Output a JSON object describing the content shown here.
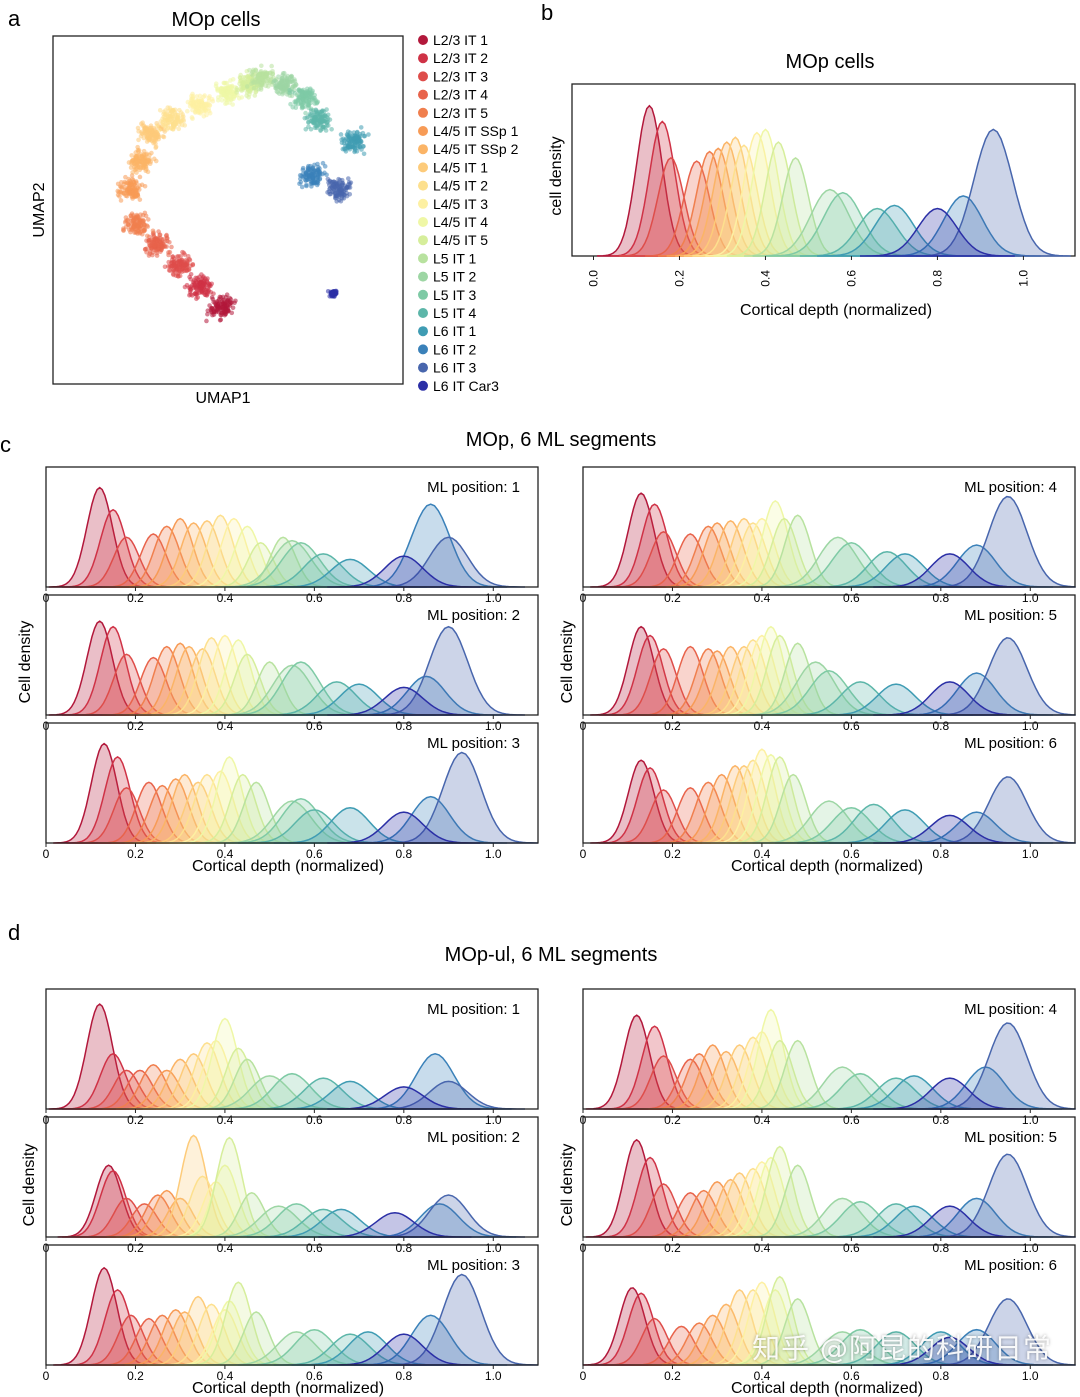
{
  "panel_letters": {
    "a": "a",
    "b": "b",
    "c": "c",
    "d": "d"
  },
  "colors": [
    "#b2183b",
    "#cf3246",
    "#de4d4a",
    "#e8634b",
    "#f07f4e",
    "#f79b56",
    "#fbb466",
    "#fdcb7a",
    "#fde08e",
    "#fdf0a2",
    "#eff7a6",
    "#d6ee9b",
    "#b8e29f",
    "#9dd6a4",
    "#7ecaa5",
    "#5cb6a9",
    "#3f9cb3",
    "#3a81b9",
    "#4866ad",
    "#2b2fa6"
  ],
  "watermark": "知乎 @阿昆的科研日常",
  "chart_data": [
    {
      "type": "scatter",
      "id": "a",
      "title": "MOp cells",
      "xlabel": "UMAP1",
      "ylabel": "UMAP2",
      "legend_position": "right",
      "series": [
        {
          "name": "L2/3 IT 1",
          "values": [
            [
              0.48,
              0.22
            ]
          ]
        },
        {
          "name": "L2/3 IT 2",
          "values": [
            [
              0.42,
              0.28
            ]
          ]
        },
        {
          "name": "L2/3 IT 3",
          "values": [
            [
              0.36,
              0.34
            ]
          ]
        },
        {
          "name": "L2/3 IT 4",
          "values": [
            [
              0.3,
              0.4
            ]
          ]
        },
        {
          "name": "L2/3 IT 5",
          "values": [
            [
              0.24,
              0.46
            ]
          ]
        },
        {
          "name": "L4/5 IT SSp 1",
          "values": [
            [
              0.22,
              0.56
            ]
          ]
        },
        {
          "name": "L4/5 IT SSp 2",
          "values": [
            [
              0.25,
              0.64
            ]
          ]
        },
        {
          "name": "L4/5 IT 1",
          "values": [
            [
              0.28,
              0.72
            ]
          ]
        },
        {
          "name": "L4/5 IT 2",
          "values": [
            [
              0.34,
              0.76
            ]
          ]
        },
        {
          "name": "L4/5 IT 3",
          "values": [
            [
              0.42,
              0.8
            ]
          ]
        },
        {
          "name": "L4/5 IT 4",
          "values": [
            [
              0.5,
              0.84
            ]
          ]
        },
        {
          "name": "L4/5 IT 5",
          "values": [
            [
              0.56,
              0.86
            ]
          ]
        },
        {
          "name": "L5 IT 1",
          "values": [
            [
              0.6,
              0.88
            ]
          ]
        },
        {
          "name": "L5 IT 2",
          "values": [
            [
              0.66,
              0.86
            ]
          ]
        },
        {
          "name": "L5 IT 3",
          "values": [
            [
              0.72,
              0.82
            ]
          ]
        },
        {
          "name": "L5 IT 4",
          "values": [
            [
              0.76,
              0.76
            ]
          ]
        },
        {
          "name": "L6 IT 1",
          "values": [
            [
              0.86,
              0.7
            ]
          ]
        },
        {
          "name": "L6 IT 2",
          "values": [
            [
              0.74,
              0.6
            ]
          ]
        },
        {
          "name": "L6 IT 3",
          "values": [
            [
              0.82,
              0.56
            ]
          ]
        },
        {
          "name": "L6 IT Car3",
          "values": [
            [
              0.8,
              0.26
            ]
          ]
        }
      ]
    },
    {
      "type": "area",
      "id": "b",
      "title": "MOp cells",
      "xlabel": "Cortical depth (normalized)",
      "ylabel": "cell density",
      "xlim": [
        -0.05,
        1.12
      ],
      "xticks": [
        "0.0",
        "0.2",
        "0.4",
        "0.6",
        "0.8",
        "1.0"
      ],
      "peaks": [
        0.13,
        0.16,
        0.18,
        0.24,
        0.27,
        0.29,
        0.31,
        0.33,
        0.35,
        0.38,
        0.4,
        0.43,
        0.47,
        0.55,
        0.58,
        0.66,
        0.7,
        0.86,
        0.93,
        0.8
      ],
      "heights": [
        0.95,
        0.85,
        0.62,
        0.6,
        0.66,
        0.68,
        0.72,
        0.75,
        0.7,
        0.78,
        0.8,
        0.72,
        0.62,
        0.42,
        0.4,
        0.3,
        0.32,
        0.38,
        0.8,
        0.3
      ]
    },
    {
      "type": "area",
      "id": "c",
      "title": "MOp, 6 ML segments",
      "xlabel": "Cortical depth (normalized)",
      "ylabel": "Cell density",
      "xlim": [
        0,
        1.1
      ],
      "xticks": [
        "0",
        "0.2",
        "0.4",
        "0.6",
        "0.8",
        "1.0"
      ],
      "subplots": [
        {
          "label": "ML position: 1",
          "peaks": [
            0.12,
            0.15,
            0.18,
            0.24,
            0.27,
            0.3,
            0.33,
            0.36,
            0.39,
            0.42,
            0.45,
            0.48,
            0.53,
            0.55,
            0.57,
            0.62,
            0.68,
            0.86,
            0.9,
            0.8
          ],
          "heights": [
            0.9,
            0.7,
            0.45,
            0.48,
            0.55,
            0.62,
            0.58,
            0.6,
            0.65,
            0.62,
            0.55,
            0.4,
            0.45,
            0.42,
            0.4,
            0.3,
            0.25,
            0.75,
            0.45,
            0.28
          ]
        },
        {
          "label": "ML position: 4",
          "peaks": [
            0.13,
            0.16,
            0.18,
            0.24,
            0.28,
            0.3,
            0.33,
            0.36,
            0.38,
            0.4,
            0.43,
            0.45,
            0.48,
            0.57,
            0.6,
            0.68,
            0.72,
            0.88,
            0.95,
            0.82
          ],
          "heights": [
            0.85,
            0.75,
            0.5,
            0.48,
            0.55,
            0.58,
            0.6,
            0.62,
            0.58,
            0.62,
            0.78,
            0.62,
            0.65,
            0.45,
            0.4,
            0.32,
            0.3,
            0.38,
            0.82,
            0.3
          ]
        },
        {
          "label": "ML position: 2",
          "peaks": [
            0.12,
            0.15,
            0.18,
            0.24,
            0.27,
            0.3,
            0.32,
            0.35,
            0.37,
            0.4,
            0.43,
            0.45,
            0.5,
            0.55,
            0.57,
            0.65,
            0.7,
            0.85,
            0.9,
            0.8
          ],
          "heights": [
            0.85,
            0.8,
            0.55,
            0.52,
            0.62,
            0.65,
            0.62,
            0.6,
            0.7,
            0.72,
            0.68,
            0.55,
            0.48,
            0.45,
            0.48,
            0.3,
            0.28,
            0.35,
            0.8,
            0.25
          ]
        },
        {
          "label": "ML position: 5",
          "peaks": [
            0.13,
            0.15,
            0.18,
            0.24,
            0.28,
            0.3,
            0.33,
            0.36,
            0.38,
            0.4,
            0.42,
            0.44,
            0.48,
            0.52,
            0.55,
            0.62,
            0.7,
            0.88,
            0.95,
            0.82
          ],
          "heights": [
            0.8,
            0.72,
            0.6,
            0.62,
            0.6,
            0.58,
            0.62,
            0.62,
            0.68,
            0.72,
            0.8,
            0.72,
            0.65,
            0.48,
            0.4,
            0.3,
            0.28,
            0.38,
            0.7,
            0.3
          ]
        },
        {
          "label": "ML position: 3",
          "peaks": [
            0.13,
            0.16,
            0.18,
            0.23,
            0.26,
            0.29,
            0.31,
            0.34,
            0.36,
            0.39,
            0.41,
            0.44,
            0.47,
            0.55,
            0.57,
            0.6,
            0.68,
            0.86,
            0.93,
            0.8
          ],
          "heights": [
            0.9,
            0.78,
            0.5,
            0.55,
            0.52,
            0.58,
            0.62,
            0.55,
            0.62,
            0.65,
            0.78,
            0.62,
            0.55,
            0.38,
            0.4,
            0.3,
            0.32,
            0.42,
            0.82,
            0.28
          ]
        },
        {
          "label": "ML position: 6",
          "peaks": [
            0.13,
            0.15,
            0.18,
            0.24,
            0.28,
            0.31,
            0.34,
            0.36,
            0.38,
            0.4,
            0.42,
            0.44,
            0.47,
            0.55,
            0.6,
            0.65,
            0.72,
            0.88,
            0.95,
            0.82
          ],
          "heights": [
            0.75,
            0.68,
            0.48,
            0.5,
            0.55,
            0.62,
            0.7,
            0.7,
            0.75,
            0.85,
            0.8,
            0.78,
            0.62,
            0.38,
            0.32,
            0.35,
            0.3,
            0.28,
            0.6,
            0.25
          ]
        }
      ]
    },
    {
      "type": "area",
      "id": "d",
      "title": "MOp-ul, 6 ML segments",
      "xlabel": "Cortical depth (normalized)",
      "ylabel": "Cell density",
      "xlim": [
        0,
        1.1
      ],
      "xticks": [
        "0",
        "0.2",
        "0.4",
        "0.6",
        "0.8",
        "1.0"
      ],
      "subplots": [
        {
          "label": "ML position: 1",
          "peaks": [
            0.12,
            0.15,
            0.18,
            0.21,
            0.24,
            0.27,
            0.3,
            0.33,
            0.36,
            0.38,
            0.4,
            0.43,
            0.45,
            0.5,
            0.55,
            0.62,
            0.68,
            0.87,
            0.9,
            0.8
          ],
          "heights": [
            0.95,
            0.5,
            0.35,
            0.35,
            0.4,
            0.35,
            0.45,
            0.5,
            0.6,
            0.62,
            0.82,
            0.55,
            0.45,
            0.3,
            0.32,
            0.28,
            0.25,
            0.5,
            0.25,
            0.2
          ]
        },
        {
          "label": "ML position: 4",
          "peaks": [
            0.12,
            0.16,
            0.18,
            0.24,
            0.26,
            0.29,
            0.32,
            0.35,
            0.38,
            0.4,
            0.42,
            0.44,
            0.48,
            0.58,
            0.62,
            0.7,
            0.74,
            0.9,
            0.95,
            0.82
          ],
          "heights": [
            0.85,
            0.75,
            0.48,
            0.45,
            0.5,
            0.58,
            0.52,
            0.58,
            0.65,
            0.7,
            0.9,
            0.62,
            0.62,
            0.38,
            0.32,
            0.28,
            0.3,
            0.38,
            0.78,
            0.28
          ]
        },
        {
          "label": "ML position: 2",
          "peaks": [
            0.14,
            0.15,
            0.18,
            0.22,
            0.25,
            0.27,
            0.3,
            0.33,
            0.35,
            0.38,
            0.4,
            0.41,
            0.46,
            0.52,
            0.56,
            0.62,
            0.66,
            0.88,
            0.9,
            0.78
          ],
          "heights": [
            0.65,
            0.6,
            0.35,
            0.3,
            0.38,
            0.42,
            0.35,
            0.92,
            0.55,
            0.5,
            0.65,
            0.9,
            0.4,
            0.28,
            0.3,
            0.25,
            0.25,
            0.3,
            0.38,
            0.22
          ]
        },
        {
          "label": "ML position: 5",
          "peaks": [
            0.12,
            0.15,
            0.18,
            0.24,
            0.27,
            0.3,
            0.33,
            0.35,
            0.38,
            0.4,
            0.42,
            0.44,
            0.48,
            0.58,
            0.62,
            0.7,
            0.74,
            0.88,
            0.95,
            0.82
          ],
          "heights": [
            0.88,
            0.72,
            0.48,
            0.4,
            0.42,
            0.5,
            0.52,
            0.58,
            0.62,
            0.68,
            0.72,
            0.82,
            0.65,
            0.35,
            0.32,
            0.3,
            0.28,
            0.35,
            0.75,
            0.28
          ]
        },
        {
          "label": "ML position: 3",
          "peaks": [
            0.13,
            0.16,
            0.19,
            0.23,
            0.26,
            0.29,
            0.31,
            0.34,
            0.37,
            0.4,
            0.41,
            0.43,
            0.47,
            0.56,
            0.6,
            0.68,
            0.72,
            0.86,
            0.93,
            0.8
          ],
          "heights": [
            0.88,
            0.68,
            0.45,
            0.42,
            0.45,
            0.5,
            0.48,
            0.62,
            0.55,
            0.5,
            0.58,
            0.75,
            0.48,
            0.3,
            0.32,
            0.28,
            0.3,
            0.45,
            0.82,
            0.28
          ]
        },
        {
          "label": "ML position: 6",
          "peaks": [
            0.11,
            0.13,
            0.16,
            0.22,
            0.26,
            0.29,
            0.32,
            0.35,
            0.38,
            0.4,
            0.43,
            0.44,
            0.48,
            0.58,
            0.62,
            0.7,
            0.8,
            0.88,
            0.95,
            0.82
          ],
          "heights": [
            0.7,
            0.65,
            0.42,
            0.35,
            0.38,
            0.45,
            0.55,
            0.68,
            0.68,
            0.75,
            0.68,
            0.8,
            0.6,
            0.3,
            0.32,
            0.3,
            0.3,
            0.32,
            0.6,
            0.25
          ]
        }
      ]
    }
  ]
}
